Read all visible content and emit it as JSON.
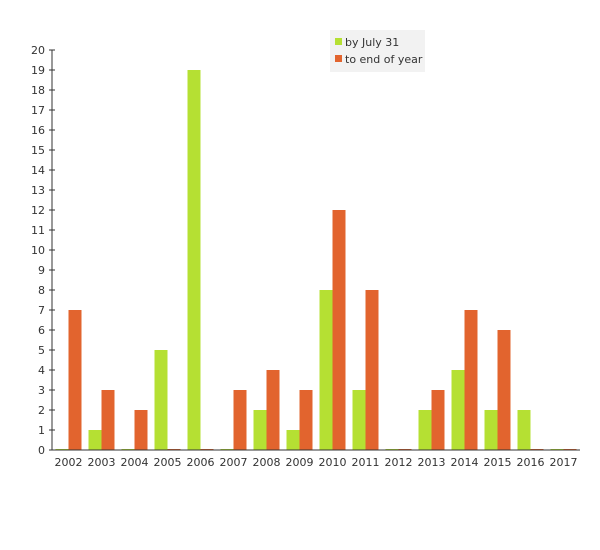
{
  "chart_data": {
    "type": "bar",
    "categories": [
      "2002",
      "2003",
      "2004",
      "2005",
      "2006",
      "2007",
      "2008",
      "2009",
      "2010",
      "2011",
      "2012",
      "2013",
      "2014",
      "2015",
      "2016",
      "2017"
    ],
    "series": [
      {
        "name": "by July 31",
        "color": "#b5e033",
        "values": [
          0,
          1,
          0,
          5,
          19,
          0,
          2,
          1,
          8,
          3,
          0,
          2,
          4,
          2,
          2,
          0
        ]
      },
      {
        "name": "to end of year",
        "color": "#e2642e",
        "values": [
          7,
          3,
          2,
          0,
          0,
          3,
          4,
          3,
          12,
          8,
          0,
          3,
          7,
          6,
          0,
          0
        ]
      }
    ],
    "yticks": [
      0,
      1,
      2,
      3,
      4,
      5,
      6,
      7,
      8,
      9,
      10,
      11,
      12,
      13,
      14,
      15,
      16,
      17,
      18,
      19,
      20
    ],
    "ylim": [
      0,
      20
    ],
    "legend_position": "top-center",
    "grid": false
  }
}
